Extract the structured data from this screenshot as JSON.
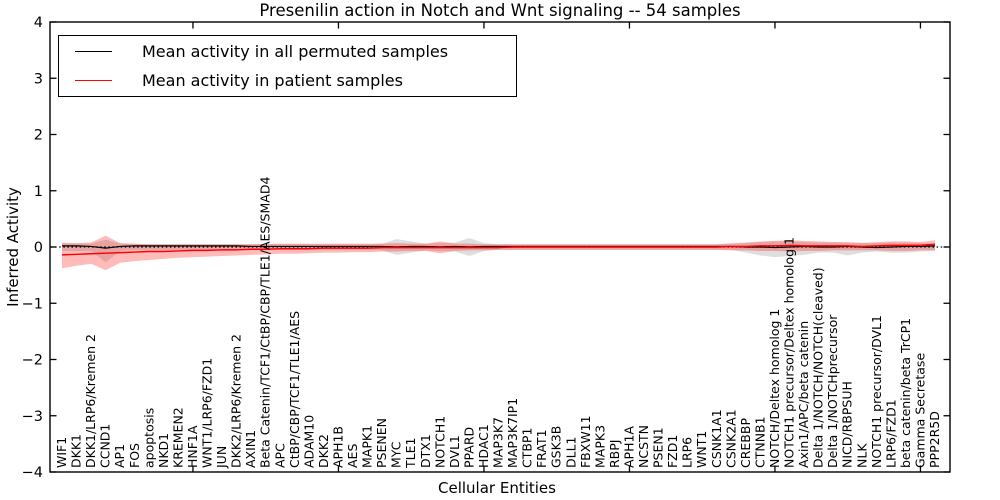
{
  "chart_data": {
    "type": "line",
    "title": "Presenilin action in Notch and Wnt signaling -- 54 samples",
    "xlabel": "Cellular Entities",
    "ylabel": "Inferred Activity",
    "ylim": [
      -4,
      4
    ],
    "yticks": [
      4,
      3,
      2,
      1,
      0,
      -1,
      -2,
      -3,
      -4
    ],
    "ytick_labels": [
      "4",
      "3",
      "2",
      "1",
      "0",
      "−1",
      "−2",
      "−3",
      "−4"
    ],
    "grid": false,
    "legend_position": "upper left",
    "zero_line": {
      "style": "dotted",
      "color": "#000000",
      "y": 0
    },
    "categories": [
      "WIF1",
      "DKK1",
      "DKK1/LRP6/Kremen 2",
      "CCND1",
      "AP1",
      "FOS",
      "apoptosis",
      "NKD1",
      "KREMEN2",
      "HNF1A",
      "WNT1/LRP6/FZD1",
      "JUN",
      "DKK2/LRP6/Kremen 2",
      "AXIN1",
      "Beta Catenin/TCF1/CtBP/CBP/TLE1/AES/SMAD4",
      "APC",
      "CtBP/CBP/TCF1/TLE1/AES",
      "ADAM10",
      "DKK2",
      "APH1B",
      "AES",
      "MAPK1",
      "PSENEN",
      "MYC",
      "TLE1",
      "DTX1",
      "NOTCH1",
      "DVL1",
      "PPARD",
      "HDAC1",
      "MAP3K7",
      "MAP3K7IP1",
      "CTBP1",
      "FRAT1",
      "GSK3B",
      "DLL1",
      "FBXW11",
      "MAPK3",
      "RBPJ",
      "APH1A",
      "NCSTN",
      "PSEN1",
      "FZD1",
      "LRP6",
      "WNT1",
      "CSNK1A1",
      "CSNK2A1",
      "CREBBP",
      "CTNNB1",
      "NOTCH/Deltex homolog 1",
      "NOTCH1 precursor/Deltex homolog 1",
      "Axin1/APC/beta catenin",
      "Delta 1/NOTCH/NOTCH(cleaved)",
      "Delta 1/NOTCHprecursor",
      "NICD/RBPSUH",
      "NLK",
      "NOTCH1 precursor/DVL1",
      "LRP6/FZD1",
      "beta catenin/beta TrCP1",
      "Gamma Secretase",
      "PPP2R5D"
    ],
    "series": [
      {
        "name": "Mean activity in all permuted samples",
        "color": "#000000",
        "values": [
          0.02,
          0.02,
          0.01,
          -0.02,
          0.01,
          0.02,
          0.02,
          0.02,
          0.02,
          0.02,
          0.02,
          0.02,
          0.02,
          0.01,
          0.01,
          0.01,
          0.01,
          0.01,
          0.01,
          0.01,
          0.01,
          0.01,
          0.01,
          0.0,
          0.01,
          0.01,
          0.0,
          0.01,
          0.0,
          0.01,
          0.01,
          0.01,
          0.01,
          0.01,
          0.01,
          0.01,
          0.01,
          0.01,
          0.01,
          0.01,
          0.01,
          0.01,
          0.01,
          0.01,
          0.01,
          0.01,
          0.01,
          0.0,
          0.0,
          -0.01,
          0.0,
          0.01,
          0.0,
          0.0,
          0.01,
          0.0,
          -0.01,
          0.0,
          0.01,
          0.01,
          0.02
        ]
      },
      {
        "name": "Mean activity in patient samples",
        "color": "#ff0000",
        "values": [
          -0.14,
          -0.13,
          -0.12,
          -0.11,
          -0.1,
          -0.09,
          -0.08,
          -0.08,
          -0.07,
          -0.06,
          -0.06,
          -0.05,
          -0.05,
          -0.04,
          -0.04,
          -0.03,
          -0.03,
          -0.03,
          -0.02,
          -0.02,
          -0.02,
          -0.02,
          -0.01,
          -0.01,
          -0.01,
          -0.01,
          -0.01,
          -0.01,
          -0.01,
          -0.01,
          -0.01,
          0.0,
          0.0,
          0.0,
          0.0,
          0.0,
          0.0,
          0.0,
          0.0,
          0.0,
          0.0,
          0.0,
          0.0,
          0.0,
          0.0,
          0.0,
          0.01,
          0.01,
          0.02,
          0.02,
          0.03,
          0.02,
          0.02,
          0.02,
          0.02,
          0.01,
          0.02,
          0.03,
          0.03,
          0.03,
          0.05
        ]
      }
    ],
    "bands": [
      {
        "name": "permuted samples spread",
        "color": "#999999",
        "alpha": 0.32,
        "upper": [
          0.06,
          0.06,
          0.06,
          0.13,
          0.06,
          0.05,
          0.05,
          0.05,
          0.05,
          0.05,
          0.05,
          0.05,
          0.05,
          0.05,
          0.05,
          0.05,
          0.05,
          0.05,
          0.05,
          0.05,
          0.05,
          0.05,
          0.06,
          0.14,
          0.1,
          0.06,
          0.07,
          0.08,
          0.16,
          0.07,
          0.05,
          0.05,
          0.05,
          0.05,
          0.05,
          0.05,
          0.05,
          0.05,
          0.05,
          0.05,
          0.05,
          0.05,
          0.05,
          0.05,
          0.05,
          0.05,
          0.05,
          0.07,
          0.09,
          0.1,
          0.1,
          0.09,
          0.08,
          0.08,
          0.07,
          0.08,
          0.07,
          0.08,
          0.08,
          0.07,
          0.06
        ],
        "lower": [
          -0.07,
          -0.07,
          -0.07,
          -0.27,
          -0.07,
          -0.05,
          -0.05,
          -0.05,
          -0.05,
          -0.05,
          -0.05,
          -0.05,
          -0.05,
          -0.05,
          -0.05,
          -0.05,
          -0.05,
          -0.05,
          -0.05,
          -0.05,
          -0.05,
          -0.05,
          -0.06,
          -0.14,
          -0.1,
          -0.06,
          -0.07,
          -0.08,
          -0.16,
          -0.07,
          -0.05,
          -0.05,
          -0.05,
          -0.05,
          -0.05,
          -0.05,
          -0.05,
          -0.05,
          -0.05,
          -0.05,
          -0.05,
          -0.05,
          -0.05,
          -0.05,
          -0.05,
          -0.05,
          -0.05,
          -0.1,
          -0.15,
          -0.18,
          -0.16,
          -0.14,
          -0.1,
          -0.1,
          -0.15,
          -0.1,
          -0.08,
          -0.1,
          -0.1,
          -0.08,
          -0.07
        ]
      },
      {
        "name": "patient samples spread",
        "color": "#ff0000",
        "alpha": 0.27,
        "upper": [
          0.08,
          0.07,
          0.08,
          0.2,
          0.07,
          0.06,
          0.05,
          0.05,
          0.05,
          0.05,
          0.05,
          0.05,
          0.05,
          0.05,
          0.06,
          0.06,
          0.06,
          0.06,
          0.06,
          0.06,
          0.06,
          0.06,
          0.06,
          0.07,
          0.06,
          0.06,
          0.1,
          0.06,
          0.06,
          0.05,
          0.05,
          0.05,
          0.05,
          0.05,
          0.05,
          0.05,
          0.05,
          0.05,
          0.05,
          0.05,
          0.05,
          0.05,
          0.05,
          0.05,
          0.05,
          0.05,
          0.07,
          0.08,
          0.1,
          0.11,
          0.12,
          0.11,
          0.1,
          0.09,
          0.09,
          0.07,
          0.09,
          0.1,
          0.1,
          0.09,
          0.12
        ],
        "lower": [
          -0.38,
          -0.33,
          -0.3,
          -0.41,
          -0.28,
          -0.25,
          -0.23,
          -0.21,
          -0.19,
          -0.18,
          -0.17,
          -0.16,
          -0.15,
          -0.14,
          -0.13,
          -0.12,
          -0.12,
          -0.11,
          -0.1,
          -0.1,
          -0.09,
          -0.09,
          -0.08,
          -0.08,
          -0.07,
          -0.07,
          -0.11,
          -0.07,
          -0.06,
          -0.06,
          -0.05,
          -0.05,
          -0.05,
          -0.05,
          -0.05,
          -0.05,
          -0.05,
          -0.05,
          -0.05,
          -0.05,
          -0.05,
          -0.05,
          -0.05,
          -0.05,
          -0.05,
          -0.05,
          -0.06,
          -0.06,
          -0.07,
          -0.07,
          -0.08,
          -0.07,
          -0.07,
          -0.06,
          -0.06,
          -0.06,
          -0.06,
          -0.07,
          -0.07,
          -0.06,
          -0.06
        ]
      }
    ]
  }
}
